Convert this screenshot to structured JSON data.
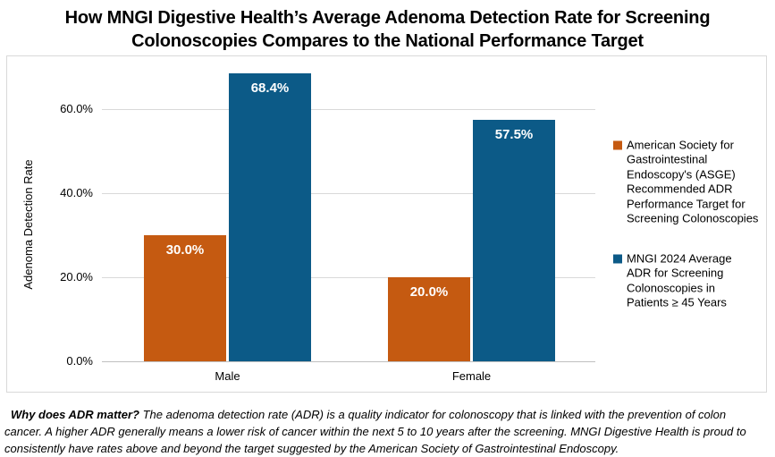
{
  "title": {
    "line1": "How MNGI Digestive Health’s Average Adenoma Detection Rate for Screening",
    "line2": "Colonoscopies Compares to the National Performance Target"
  },
  "chart_data": {
    "type": "bar",
    "categories": [
      "Male",
      "Female"
    ],
    "series": [
      {
        "name": "American Society for Gastrointestinal Endoscopy's (ASGE) Recommended ADR Performance Target for Screening Colonoscopies",
        "color": "#C55A11",
        "values": [
          30.0,
          20.0
        ],
        "labels": [
          "30.0%",
          "20.0%"
        ]
      },
      {
        "name": "MNGI 2024 Average ADR for Screening Colonoscopies in Patients ≥ 45 Years",
        "color": "#0C5A87",
        "values": [
          68.4,
          57.5
        ],
        "labels": [
          "68.4%",
          "57.5%"
        ]
      }
    ],
    "ylabel": "Adenoma Detection Rate",
    "xlabel": "",
    "yticks": [
      0,
      20,
      40,
      60
    ],
    "ytick_labels": [
      "0.0%",
      "20.0%",
      "40.0%",
      "60.0%"
    ],
    "ylim": [
      0,
      72.5
    ],
    "grid": true,
    "legend_position": "right"
  },
  "footnote": {
    "lead": "Why does ADR matter?",
    "text": "The adenoma detection rate (ADR) is a quality indicator for colonoscopy that is linked with the prevention of colon cancer. A higher ADR generally means a lower risk of cancer within the next 5 to 10 years after the screening. MNGI Digestive Health is proud to consistently have rates above and beyond the target suggested by the American Society of Gastrointestinal Endoscopy."
  }
}
